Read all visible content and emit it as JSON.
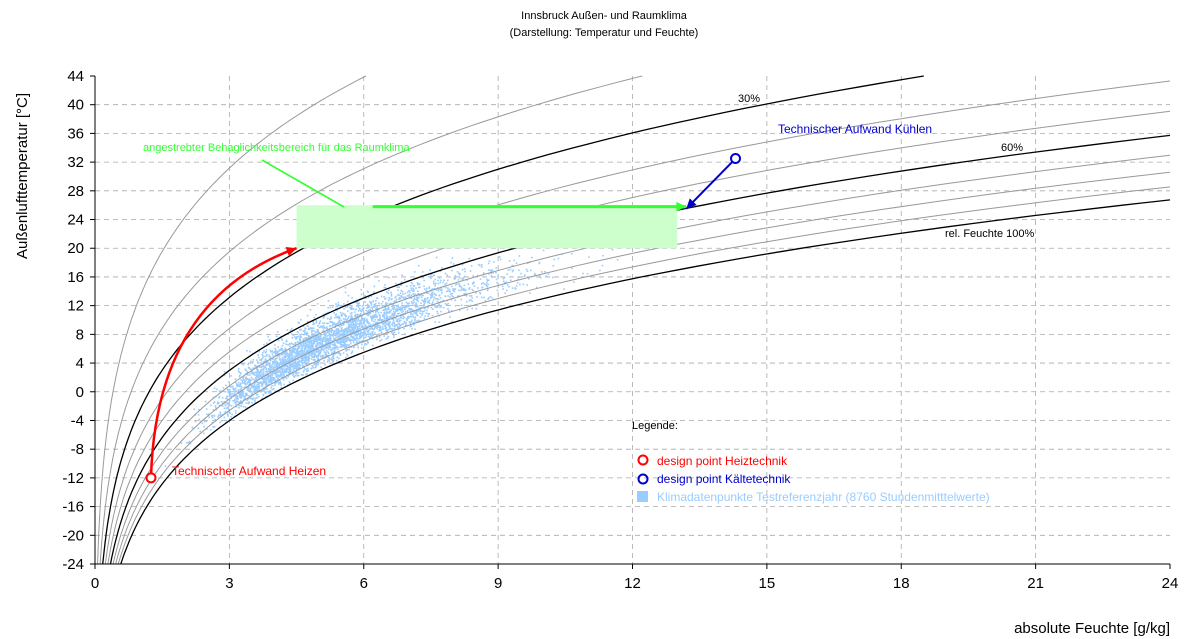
{
  "chart_data": {
    "type": "scatter",
    "title": "Innsbruck Außen- und Raumklima",
    "subtitle": "(Darstellung: Temperatur und Feuchte)",
    "xlabel": "absolute Feuchte [g/kg]",
    "ylabel": "Außenlufttemperatur [°C]",
    "xlim": [
      0,
      24
    ],
    "ylim": [
      -24,
      44
    ],
    "xticks": [
      "0",
      "3",
      "6",
      "9",
      "12",
      "15",
      "18",
      "21",
      "24"
    ],
    "yticks": [
      "44",
      "40",
      "36",
      "32",
      "28",
      "24",
      "20",
      "16",
      "12",
      "8",
      "4",
      "0",
      "-4",
      "-8",
      "-12",
      "-16",
      "-20",
      "-24"
    ],
    "grid": true,
    "rh_curves": [
      {
        "rh": 10,
        "emphasis": false
      },
      {
        "rh": 20,
        "emphasis": false
      },
      {
        "rh": 30,
        "emphasis": true
      },
      {
        "rh": 40,
        "emphasis": false
      },
      {
        "rh": 50,
        "emphasis": false
      },
      {
        "rh": 60,
        "emphasis": true
      },
      {
        "rh": 70,
        "emphasis": false
      },
      {
        "rh": 80,
        "emphasis": false
      },
      {
        "rh": 90,
        "emphasis": false
      },
      {
        "rh": 100,
        "emphasis": true
      }
    ],
    "curve_labels": {
      "rh30": "30%",
      "rh60": "60%",
      "rh100": "rel. Feuchte 100%"
    },
    "comfort_zone": {
      "label": "angestrebter Behaglichkeitsbereich für das Raumklima",
      "x_range": [
        4.5,
        13
      ],
      "y_range": [
        20,
        26
      ],
      "color": "#ccffcc",
      "label_color": "#33ff33"
    },
    "design_points": [
      {
        "name": "design point Heiztechnik",
        "x": 1.25,
        "y": -12,
        "color": "#ff0000",
        "annotation": "Technischer Aufwand Heizen"
      },
      {
        "name": "design point Kältetechnik",
        "x": 14.3,
        "y": 32.5,
        "color": "#0000cc",
        "annotation": "Technischer Aufwand Kühlen"
      }
    ],
    "arrows": [
      {
        "from": [
          1.25,
          -12
        ],
        "to": [
          4.5,
          20
        ],
        "color": "#ff0000"
      },
      {
        "from": [
          14.3,
          32.5
        ],
        "to": [
          13.2,
          25.5
        ],
        "color": "#0000cc"
      },
      {
        "from": [
          6.2,
          25.8
        ],
        "to": [
          13.2,
          25.8
        ],
        "color": "#33ff33"
      }
    ],
    "scatter_series": {
      "name": "Klimadatenpunkte Testreferenzjahr (8760 Stundenmitttelwerte)",
      "color": "#99ccff",
      "point_count": 8760,
      "rh_range_percent": [
        35,
        100
      ]
    },
    "legend": {
      "title": "Legende:",
      "placement": "bottom-right",
      "entries": [
        {
          "label": "design point Heiztechnik",
          "marker": "circle",
          "color": "#ff0000"
        },
        {
          "label": "design point Kältetechnik",
          "marker": "circle",
          "color": "#0000cc"
        },
        {
          "label": "Klimadatenpunkte Testreferenzjahr (8760 Stundenmitttelwerte)",
          "marker": "square",
          "color": "#99ccff"
        }
      ]
    },
    "colors": {
      "grid": "#aaaaaa",
      "curve": "#999999",
      "curve_emphasis": "#000000",
      "axis": "#000000"
    }
  }
}
